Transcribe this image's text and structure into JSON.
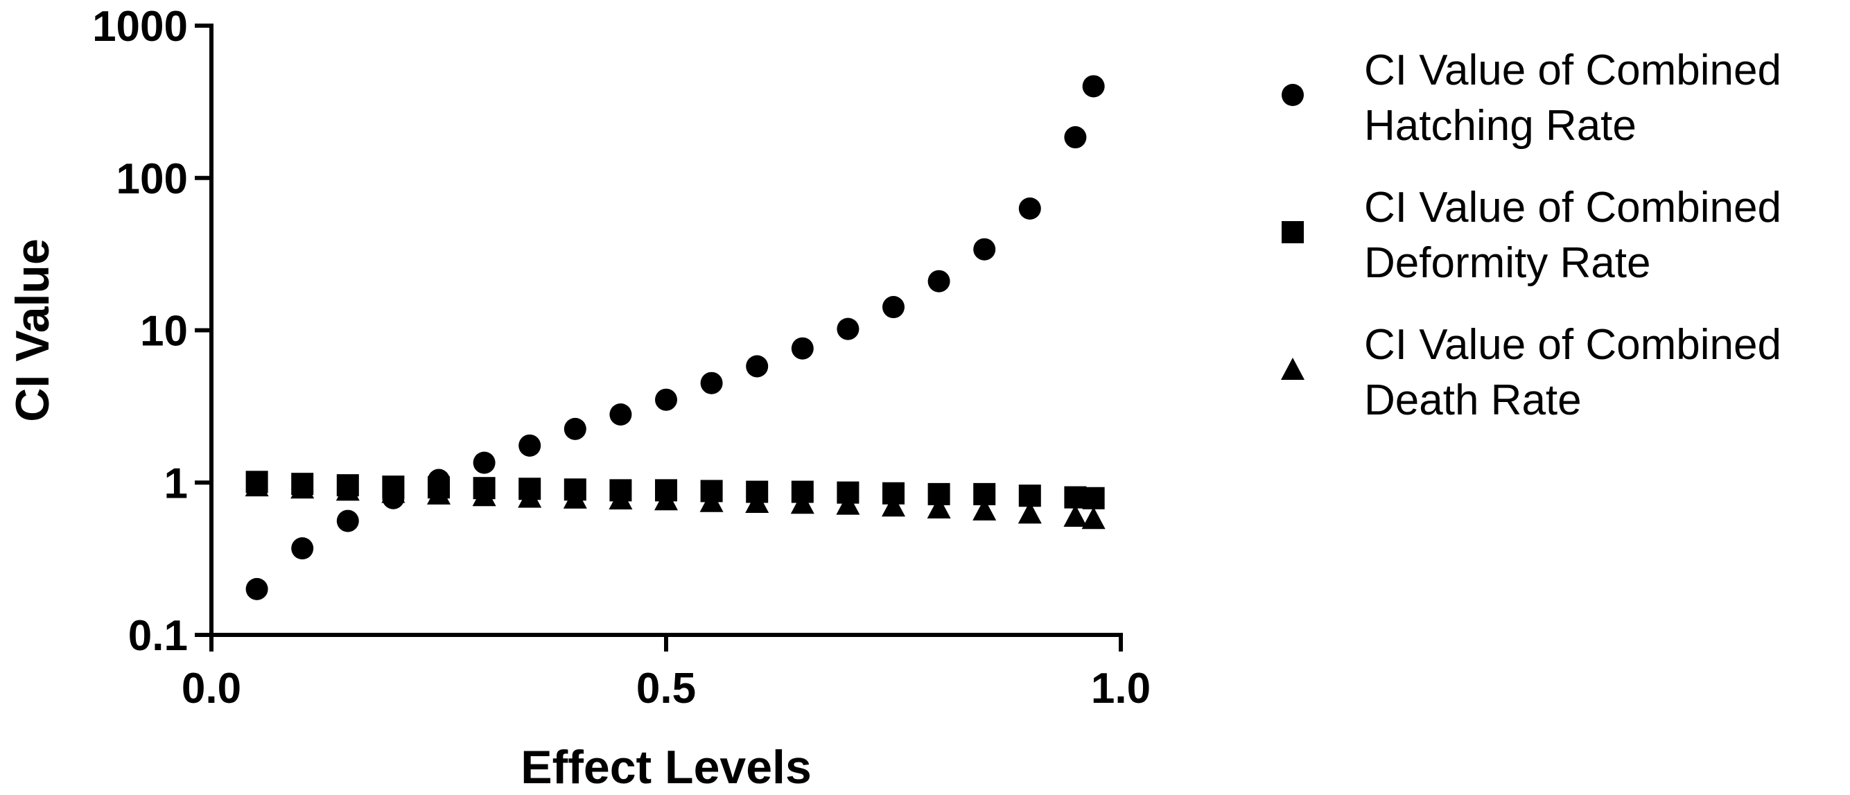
{
  "chart_data": {
    "type": "scatter",
    "title": "",
    "xlabel": "Effect Levels",
    "ylabel": "CI Value",
    "xlim": [
      0.0,
      1.0
    ],
    "ylim": [
      0.1,
      1000
    ],
    "yscale": "log",
    "x_ticks": [
      "0.0",
      "0.5",
      "1.0"
    ],
    "y_ticks": [
      "0.1",
      "1",
      "10",
      "100",
      "1000"
    ],
    "x": [
      0.05,
      0.1,
      0.15,
      0.2,
      0.25,
      0.3,
      0.35,
      0.4,
      0.45,
      0.5,
      0.55,
      0.6,
      0.65,
      0.7,
      0.75,
      0.8,
      0.85,
      0.9,
      0.95,
      0.97
    ],
    "series": [
      {
        "name": "CI Value of Combined Hatching Rate",
        "marker": "circle",
        "values": [
          0.2,
          0.37,
          0.56,
          0.79,
          1.04,
          1.35,
          1.75,
          2.25,
          2.8,
          3.5,
          4.5,
          5.8,
          7.6,
          10.2,
          14.2,
          21,
          34,
          63,
          185,
          400
        ]
      },
      {
        "name": "CI Value of Combined Deformity Rate",
        "marker": "square",
        "values": [
          1.01,
          0.98,
          0.96,
          0.94,
          0.93,
          0.92,
          0.91,
          0.9,
          0.89,
          0.89,
          0.88,
          0.87,
          0.87,
          0.86,
          0.85,
          0.84,
          0.84,
          0.82,
          0.8,
          0.79
        ]
      },
      {
        "name": "CI Value of Combined Death Rate",
        "marker": "triangle",
        "values": [
          0.95,
          0.92,
          0.89,
          0.86,
          0.84,
          0.82,
          0.8,
          0.79,
          0.78,
          0.77,
          0.75,
          0.74,
          0.73,
          0.72,
          0.7,
          0.68,
          0.66,
          0.63,
          0.6,
          0.58
        ]
      }
    ],
    "legend": {
      "position": "right",
      "entries": [
        {
          "line1": "CI Value of Combined",
          "line2": "Hatching Rate",
          "marker": "circle"
        },
        {
          "line1": "CI Value of Combined",
          "line2": "Deformity Rate",
          "marker": "square"
        },
        {
          "line1": "CI Value of Combined",
          "line2": "Death Rate",
          "marker": "triangle"
        }
      ]
    },
    "colors": {
      "marker": "#000000",
      "axis": "#000000",
      "background": "#ffffff"
    }
  }
}
